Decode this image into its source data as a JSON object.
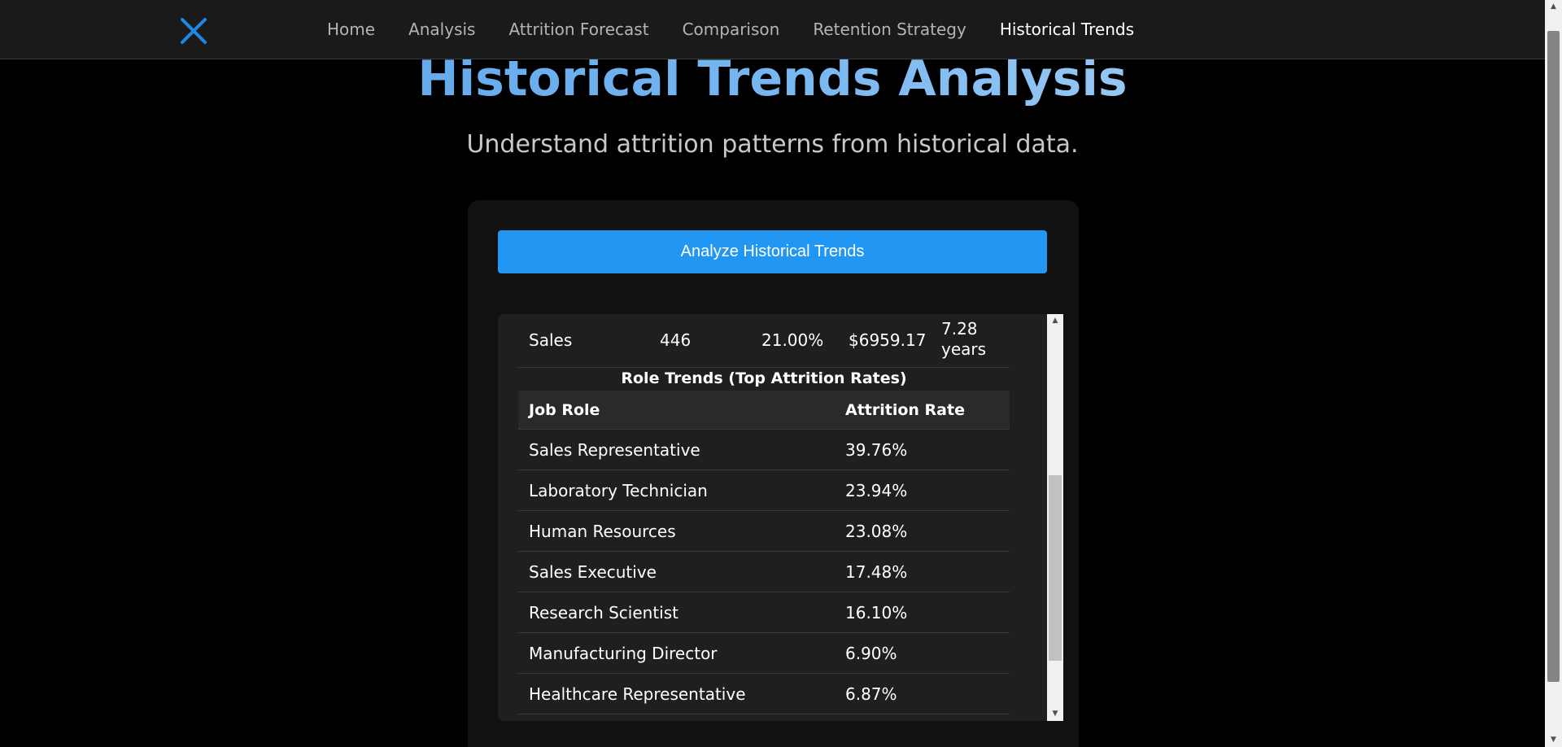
{
  "nav": {
    "logo_icon": "x-logo-icon",
    "links": [
      {
        "label": "Home",
        "active": false
      },
      {
        "label": "Analysis",
        "active": false
      },
      {
        "label": "Attrition Forecast",
        "active": false
      },
      {
        "label": "Comparison",
        "active": false
      },
      {
        "label": "Retention Strategy",
        "active": false
      },
      {
        "label": "Historical Trends",
        "active": true
      }
    ]
  },
  "page": {
    "title": "Historical Trends Analysis",
    "subtitle": "Understand attrition patterns from historical data."
  },
  "card": {
    "analyze_button_label": "Analyze Historical Trends"
  },
  "department_row": {
    "department": "Sales",
    "employees": "446",
    "attrition_rate": "21.00%",
    "avg_income": "$6959.17",
    "avg_tenure": "7.28 years"
  },
  "role_trends": {
    "title": "Role Trends (Top Attrition Rates)",
    "headers": {
      "role": "Job Role",
      "rate": "Attrition Rate"
    },
    "rows": [
      {
        "role": "Sales Representative",
        "rate": "39.76%"
      },
      {
        "role": "Laboratory Technician",
        "rate": "23.94%"
      },
      {
        "role": "Human Resources",
        "rate": "23.08%"
      },
      {
        "role": "Sales Executive",
        "rate": "17.48%"
      },
      {
        "role": "Research Scientist",
        "rate": "16.10%"
      },
      {
        "role": "Manufacturing Director",
        "rate": "6.90%"
      },
      {
        "role": "Healthcare Representative",
        "rate": "6.87%"
      }
    ]
  },
  "colors": {
    "accent": "#2196f3",
    "logo": "#1e88e5",
    "navbar": "#1a1a1a",
    "card": "#111111",
    "table": "#1f1f1f"
  }
}
